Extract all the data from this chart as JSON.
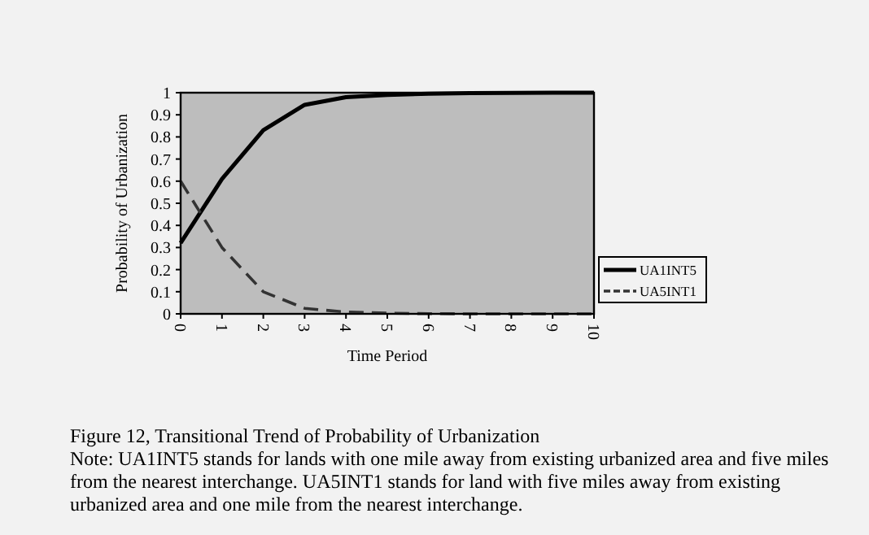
{
  "chart_data": {
    "type": "line",
    "title": "Figure 12, Transitional Trend of Probability of Urbanization",
    "annotations": [
      "Note: UA1INT5 stands for lands with one mile away from existing urbanized area and five miles from the nearest interchange.  UA5INT1 stands for land with five miles away from existing urbanized area and one mile from the nearest interchange."
    ],
    "xlabel": "Time Period",
    "ylabel": "Probability of Urbanization",
    "x": [
      0,
      1,
      2,
      3,
      4,
      5,
      6,
      7,
      8,
      9,
      10
    ],
    "series": [
      {
        "name": "UA1INT5",
        "color": "#000000",
        "line_style": "solid",
        "values": [
          0.32,
          0.61,
          0.83,
          0.945,
          0.98,
          0.99,
          0.995,
          0.998,
          0.999,
          1,
          1
        ]
      },
      {
        "name": "UA5INT1",
        "color": "#333333",
        "line_style": "dashed",
        "values": [
          0.6,
          0.3,
          0.1,
          0.025,
          0.008,
          0.003,
          0.001,
          0,
          0,
          0,
          0
        ]
      }
    ],
    "xlim": [
      0,
      10
    ],
    "xticks": [
      0,
      1,
      2,
      3,
      4,
      5,
      6,
      7,
      8,
      9,
      10
    ],
    "ylim": [
      0,
      1
    ],
    "yticks": [
      0,
      0.1,
      0.2,
      0.3,
      0.4,
      0.5,
      0.6,
      0.7,
      0.8,
      0.9,
      1
    ],
    "grid": false,
    "legend": "right",
    "marker": "none"
  }
}
